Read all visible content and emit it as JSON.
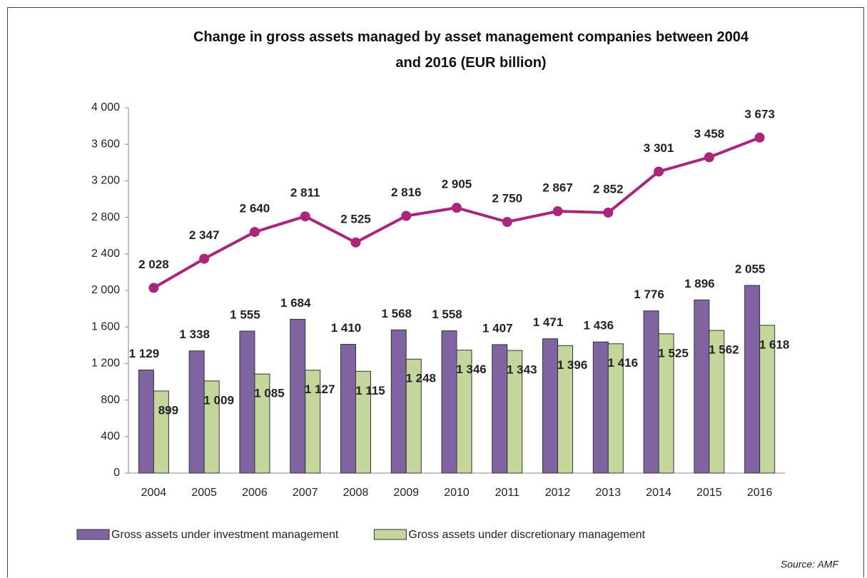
{
  "chart_data": {
    "type": "bar-line",
    "title": "Change in gross assets managed by asset management companies between 2004\nand 2016 (EUR billion)",
    "categories": [
      "2004",
      "2005",
      "2006",
      "2007",
      "2008",
      "2009",
      "2010",
      "2011",
      "2012",
      "2013",
      "2014",
      "2015",
      "2016"
    ],
    "series": [
      {
        "name": "Gross assets under investment management",
        "type": "bar",
        "color": "#8064a2",
        "values": [
          1129,
          1338,
          1555,
          1684,
          1410,
          1568,
          1558,
          1407,
          1471,
          1436,
          1776,
          1896,
          2055
        ],
        "value_labels": [
          "1 129",
          "1 338",
          "1 555",
          "1 684",
          "1 410",
          "1 568",
          "1 558",
          "1 407",
          "1 471",
          "1 436",
          "1 776",
          "1 896",
          "2 055"
        ]
      },
      {
        "name": "Gross assets under discretionary management",
        "type": "bar",
        "color": "#c3d69b",
        "values": [
          899,
          1009,
          1085,
          1127,
          1115,
          1248,
          1346,
          1343,
          1396,
          1416,
          1525,
          1562,
          1618
        ],
        "value_labels": [
          "899",
          "1 009",
          "1 085",
          "1 127",
          "1 115",
          "1 248",
          "1 346",
          "1 343",
          "1 396",
          "1 416",
          "1 525",
          "1 562",
          "1 618"
        ]
      },
      {
        "type": "line",
        "color": "#a9267a",
        "values": [
          2028,
          2347,
          2640,
          2811,
          2525,
          2816,
          2905,
          2750,
          2867,
          2852,
          3301,
          3458,
          3673
        ],
        "value_labels": [
          "2 028",
          "2 347",
          "2 640",
          "2 811",
          "2 525",
          "2 816",
          "2 905",
          "2 750",
          "2 867",
          "2 852",
          "3 301",
          "3 458",
          "3 673"
        ]
      }
    ],
    "ylim": [
      0,
      4000
    ],
    "yticks": [
      0,
      400,
      800,
      {
        "value": 1200,
        "label": "1 200"
      },
      {
        "value": 1600,
        "label": "1 600"
      },
      {
        "value": 2000,
        "label": "2 000"
      },
      {
        "value": 2400,
        "label": "2 400"
      },
      {
        "value": 2800,
        "label": "2 800"
      },
      {
        "value": 3200,
        "label": "3 200"
      },
      {
        "value": 3600,
        "label": "3 600"
      },
      {
        "value": 4000,
        "label": "4 000"
      }
    ],
    "legend": "bottom",
    "source": "Source: AMF"
  }
}
